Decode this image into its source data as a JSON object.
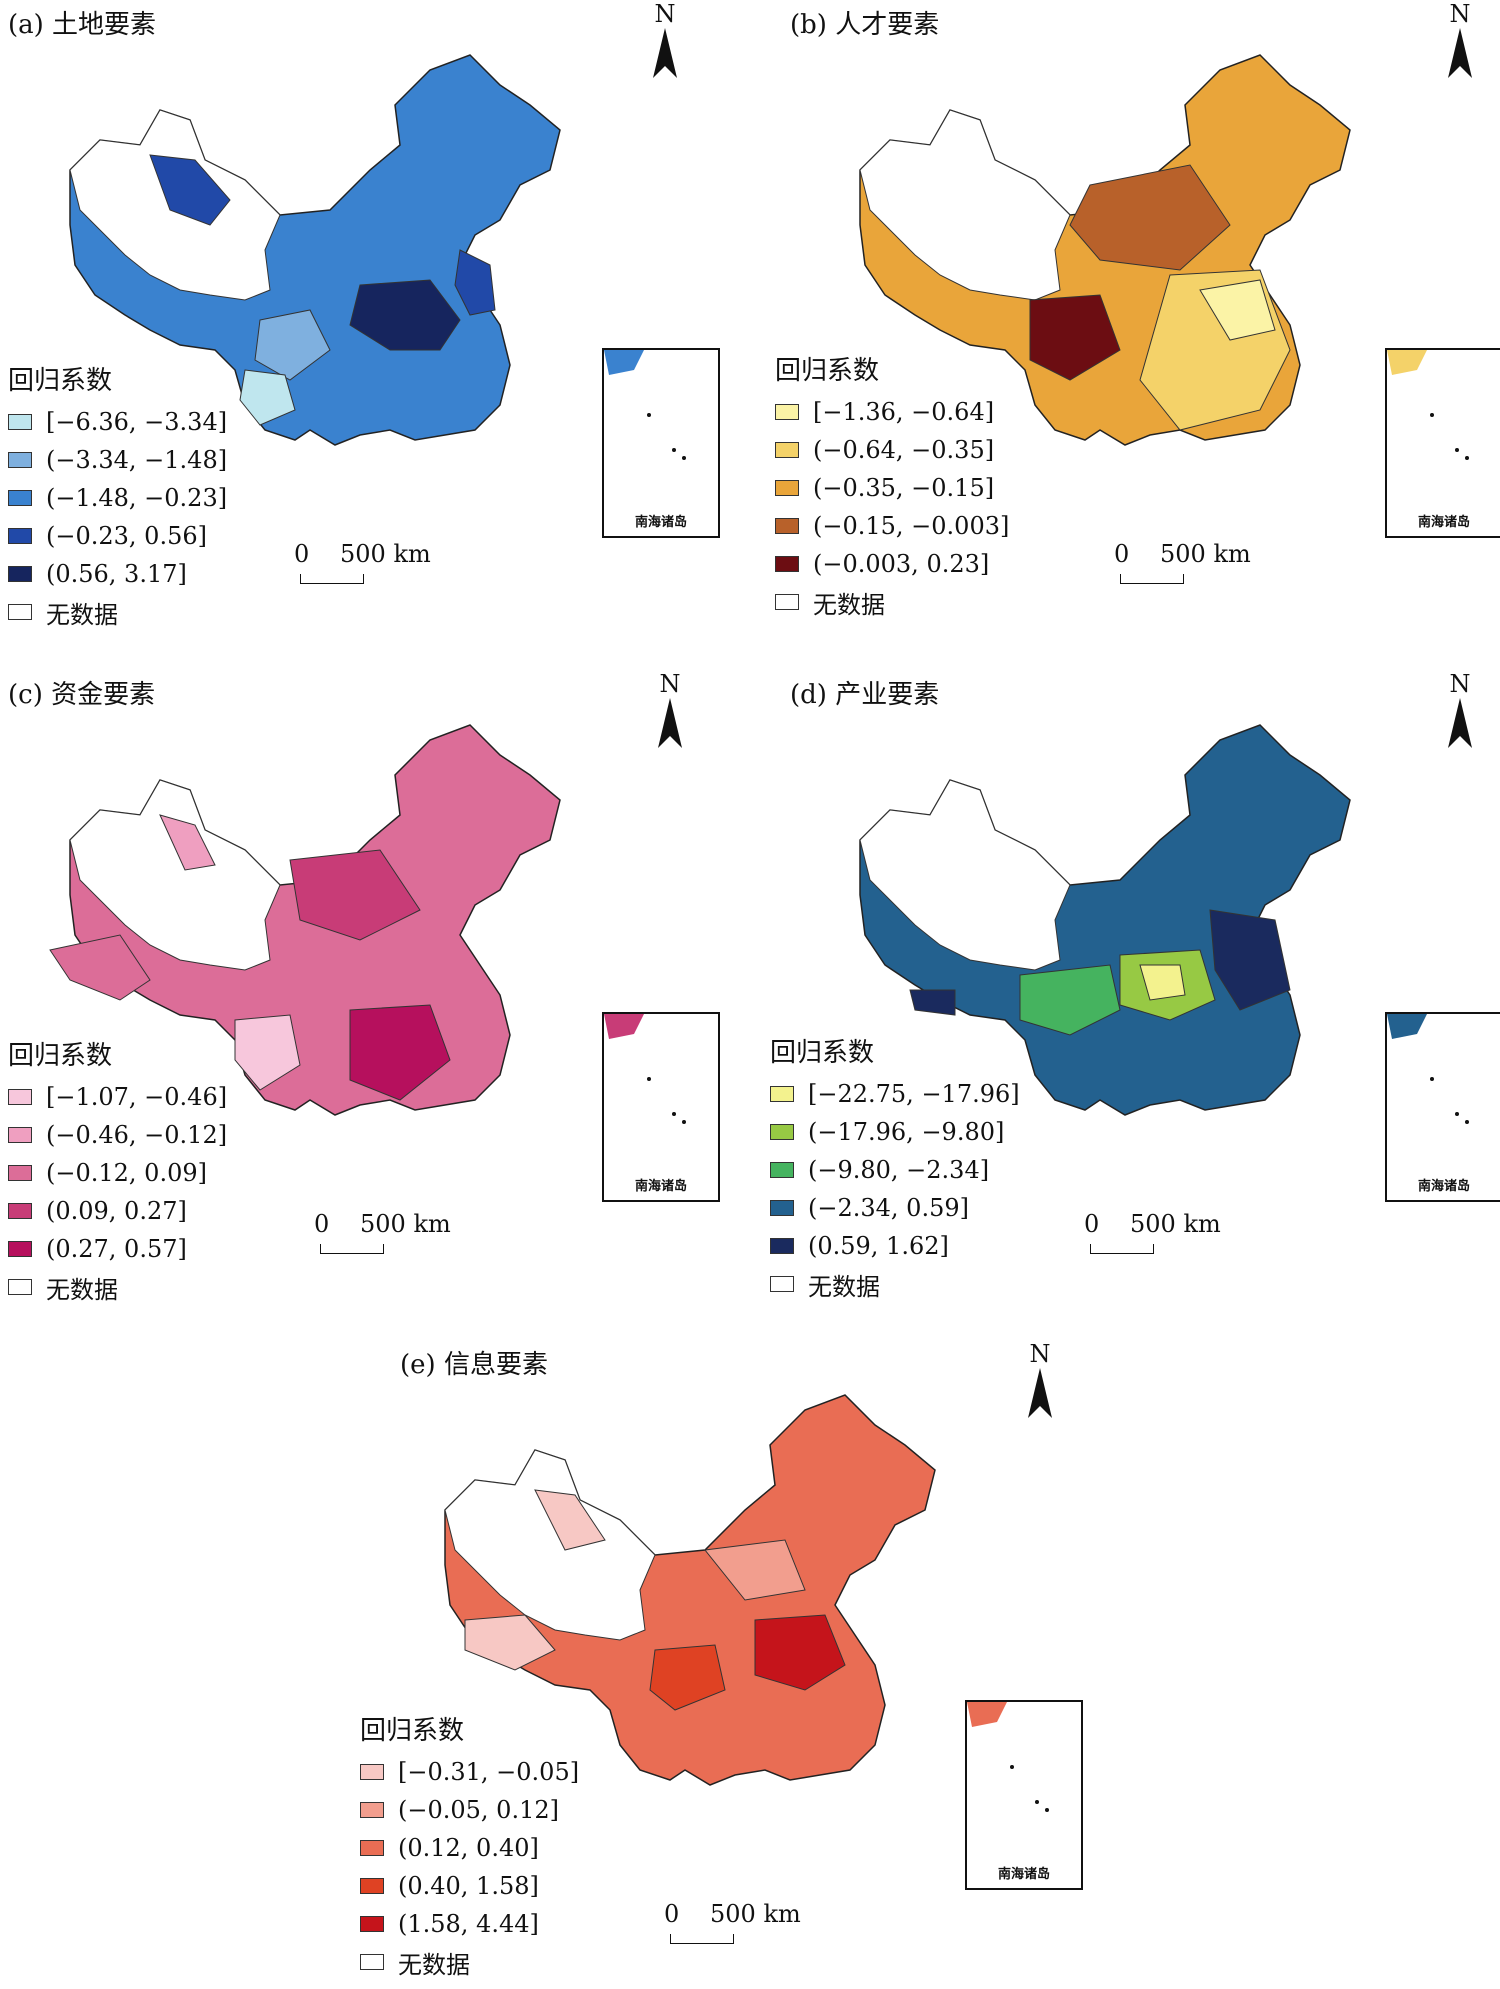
{
  "panels": [
    {
      "title": "(a) 土地要素",
      "colors": [
        "#bfe6ee",
        "#7fb0df",
        "#3a82cf",
        "#2149a8",
        "#16255e"
      ],
      "legend_title": "回归系数",
      "legend": [
        "[−6.36, −3.34]",
        "(−3.34, −1.48]",
        "(−1.48, −0.23]",
        "(−0.23, 0.56]",
        "(0.56, 3.17]"
      ],
      "no_data": "无数据",
      "scale_zero": "0",
      "scale_label": "500 km",
      "north": "N",
      "inset_label": "南海诸岛"
    },
    {
      "title": "(b) 人才要素",
      "colors": [
        "#fbf3a6",
        "#f4d269",
        "#e9a53a",
        "#b8612a",
        "#6c0d12"
      ],
      "legend_title": "回归系数",
      "legend": [
        "[−1.36, −0.64]",
        "(−0.64, −0.35]",
        "(−0.35, −0.15]",
        "(−0.15, −0.003]",
        "(−0.003, 0.23]"
      ],
      "no_data": "无数据",
      "scale_zero": "0",
      "scale_label": "500 km",
      "north": "N",
      "inset_label": "南海诸岛"
    },
    {
      "title": "(c) 资金要素",
      "colors": [
        "#f7c7dc",
        "#ef9fc0",
        "#dc6d98",
        "#c83c77",
        "#b6105d"
      ],
      "legend_title": "回归系数",
      "legend": [
        "[−1.07, −0.46]",
        "(−0.46, −0.12]",
        "(−0.12, 0.09]",
        "(0.09, 0.27]",
        "(0.27, 0.57]"
      ],
      "no_data": "无数据",
      "scale_zero": "0",
      "scale_label": "500 km",
      "north": "N",
      "inset_label": "南海诸岛"
    },
    {
      "title": "(d) 产业要素",
      "colors": [
        "#f3f28e",
        "#97c944",
        "#45b35f",
        "#23618f",
        "#1a2a5e"
      ],
      "legend_title": "回归系数",
      "legend": [
        "[−22.75, −17.96]",
        "(−17.96, −9.80]",
        "(−9.80, −2.34]",
        "(−2.34, 0.59]",
        "(0.59, 1.62]"
      ],
      "no_data": "无数据",
      "scale_zero": "0",
      "scale_label": "500 km",
      "north": "N",
      "inset_label": "南海诸岛"
    },
    {
      "title": "(e) 信息要素",
      "colors": [
        "#f7c8c4",
        "#f29e8e",
        "#e96d54",
        "#df4223",
        "#c5141b"
      ],
      "legend_title": "回归系数",
      "legend": [
        "[−0.31, −0.05]",
        "(−0.05, 0.12]",
        "(0.12, 0.40]",
        "(0.40, 1.58]",
        "(1.58, 4.44]"
      ],
      "no_data": "无数据",
      "scale_zero": "0",
      "scale_label": "500 km",
      "north": "N",
      "inset_label": "南海诸岛"
    }
  ]
}
